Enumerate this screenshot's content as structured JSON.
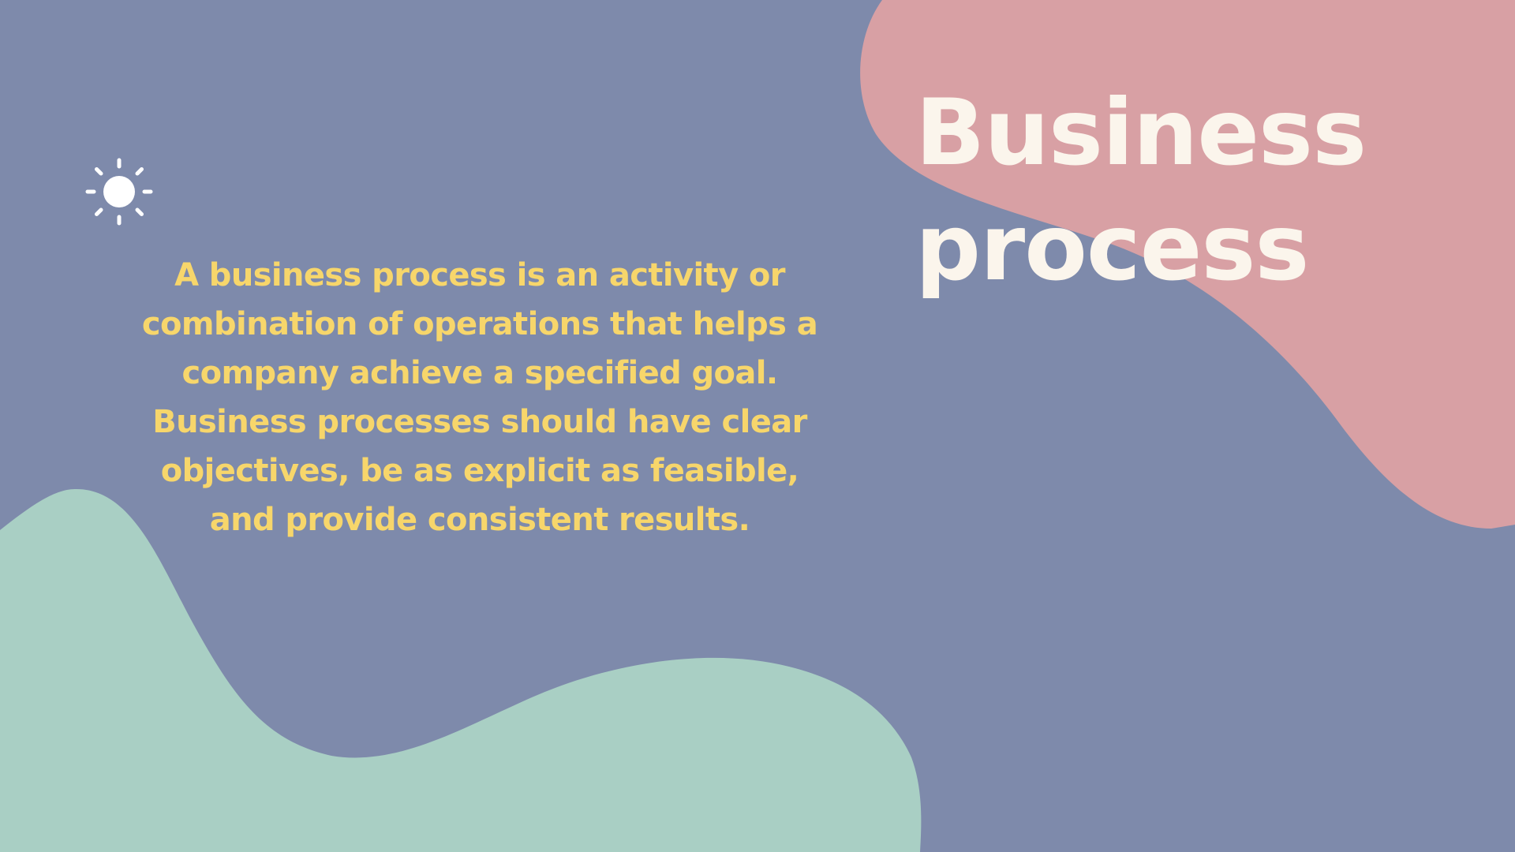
{
  "slide": {
    "title_lines": [
      "Business",
      "process"
    ],
    "body": "A business process is an activity or combination of operations that helps a company achieve a specified goal. Business processes should have clear objectives, be as explicit as feasible, and provide consistent results.",
    "icon": "sun-icon"
  },
  "colors": {
    "background": "#7e8aab",
    "pink_blob": "#d8a0a4",
    "mint_blob": "#a9cfc4",
    "title": "#fbf5ec",
    "body_text": "#f7d66b",
    "icon": "#ffffff"
  }
}
